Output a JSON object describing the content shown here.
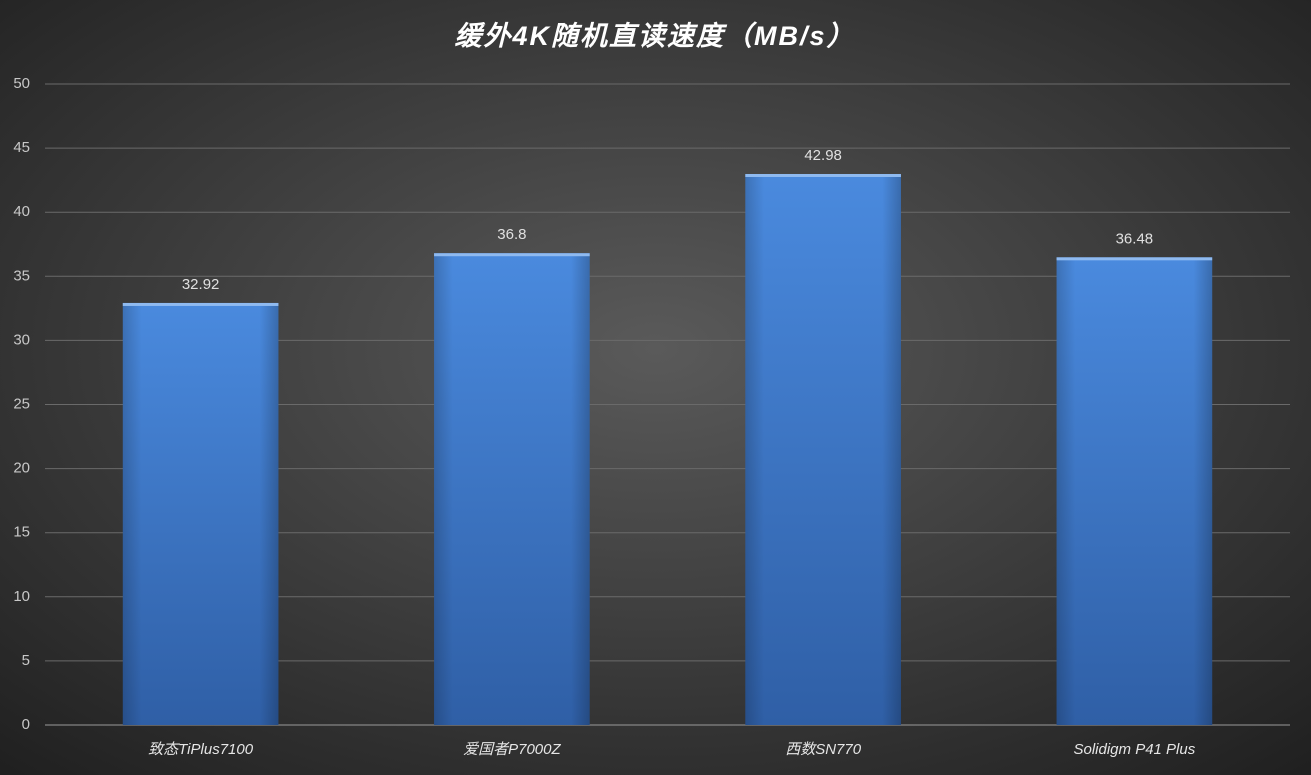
{
  "chart_data": {
    "type": "bar",
    "title": "缓外4K随机直读速度（MB/s）",
    "categories": [
      "致态TiPlus7100",
      "爱国者P7000Z",
      "西数SN770",
      "Solidigm P41 Plus"
    ],
    "values": [
      32.92,
      36.8,
      42.98,
      36.48
    ],
    "color": "#3f7fd0",
    "ylim": [
      0,
      50
    ],
    "yticks": [
      0,
      5,
      10,
      15,
      20,
      25,
      30,
      35,
      40,
      45,
      50
    ],
    "grid": true
  }
}
